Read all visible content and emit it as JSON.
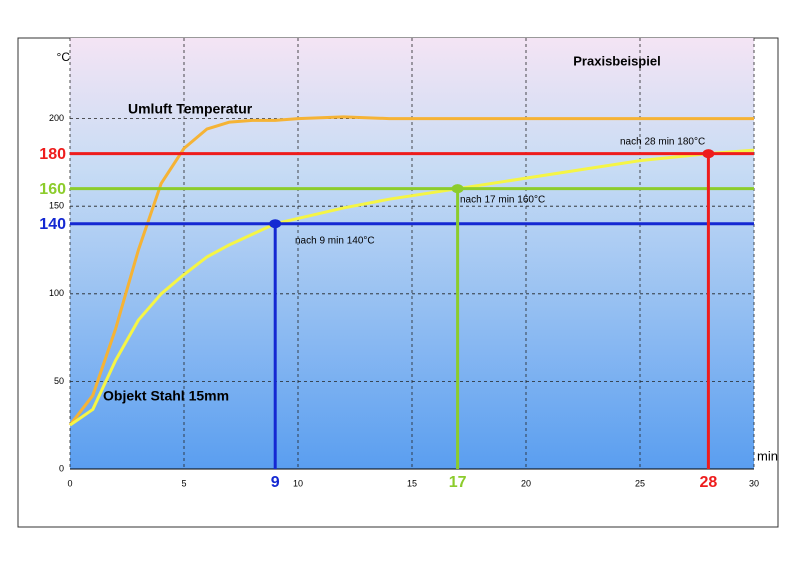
{
  "chart_data": {
    "type": "line",
    "title": "Praxisbeispiel",
    "y_label": "°C",
    "x_label": "min",
    "x": [
      0,
      1,
      2,
      3,
      4,
      5,
      6,
      7,
      8,
      9,
      10,
      12,
      14,
      17,
      20,
      23,
      25,
      28,
      30
    ],
    "series": [
      {
        "name": "Umluft Temperatur",
        "color": "#f5b335",
        "values": [
          25,
          42,
          80,
          125,
          163,
          183,
          194,
          198,
          199,
          199,
          200,
          201,
          200,
          200,
          200,
          200,
          200,
          200,
          200
        ]
      },
      {
        "name": "Objekt Stahl 15mm",
        "color": "#f5f545",
        "values": [
          25,
          34,
          62,
          85,
          100,
          111,
          121,
          128,
          134,
          140,
          143,
          149,
          154,
          160,
          166,
          172,
          176,
          180,
          182
        ]
      }
    ],
    "xlim": [
      0,
      30
    ],
    "ylim": [
      0,
      246
    ],
    "xticks": [
      0,
      5,
      10,
      15,
      20,
      25,
      30
    ],
    "yticks": [
      0,
      50,
      100,
      150,
      200
    ],
    "grid": true,
    "markers": [
      {
        "x": 9,
        "y": 140,
        "color": "#1428d2",
        "annotation": "nach 9 min 140°C"
      },
      {
        "x": 17,
        "y": 160,
        "color": "#8ccc2c",
        "annotation": "nach 17 min 160°C"
      },
      {
        "x": 28,
        "y": 180,
        "color": "#ee1c1c",
        "annotation": "nach 28 min 180°C"
      }
    ]
  }
}
